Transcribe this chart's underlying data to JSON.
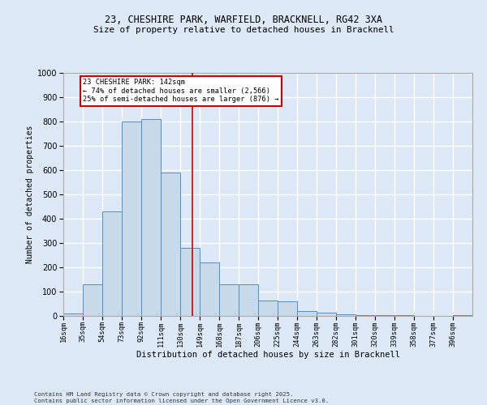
{
  "title_line1": "23, CHESHIRE PARK, WARFIELD, BRACKNELL, RG42 3XA",
  "title_line2": "Size of property relative to detached houses in Bracknell",
  "xlabel": "Distribution of detached houses by size in Bracknell",
  "ylabel": "Number of detached properties",
  "annotation_line1": "23 CHESHIRE PARK: 142sqm",
  "annotation_line2": "← 74% of detached houses are smaller (2,566)",
  "annotation_line3": "25% of semi-detached houses are larger (876) →",
  "footer_line1": "Contains HM Land Registry data © Crown copyright and database right 2025.",
  "footer_line2": "Contains public sector information licensed under the Open Government Licence v3.0.",
  "bin_labels": [
    "16sqm",
    "35sqm",
    "54sqm",
    "73sqm",
    "92sqm",
    "111sqm",
    "130sqm",
    "149sqm",
    "168sqm",
    "187sqm",
    "206sqm",
    "225sqm",
    "244sqm",
    "263sqm",
    "282sqm",
    "301sqm",
    "320sqm",
    "339sqm",
    "358sqm",
    "377sqm",
    "396sqm"
  ],
  "bin_edges": [
    16,
    35,
    54,
    73,
    92,
    111,
    130,
    149,
    168,
    187,
    206,
    225,
    244,
    263,
    282,
    301,
    320,
    339,
    358,
    377,
    396
  ],
  "bar_heights": [
    10,
    130,
    430,
    800,
    810,
    590,
    280,
    220,
    130,
    130,
    65,
    60,
    20,
    15,
    8,
    5,
    3,
    2,
    1,
    0,
    3
  ],
  "bar_color": "#c8d9ea",
  "bar_edge_color": "#5b8db8",
  "background_color": "#dce8f5",
  "grid_color": "#ffffff",
  "property_sqm": 142,
  "vline_color": "#cc0000",
  "annotation_box_color": "#cc0000",
  "ylim": [
    0,
    1000
  ],
  "yticks": [
    0,
    100,
    200,
    300,
    400,
    500,
    600,
    700,
    800,
    900,
    1000
  ]
}
